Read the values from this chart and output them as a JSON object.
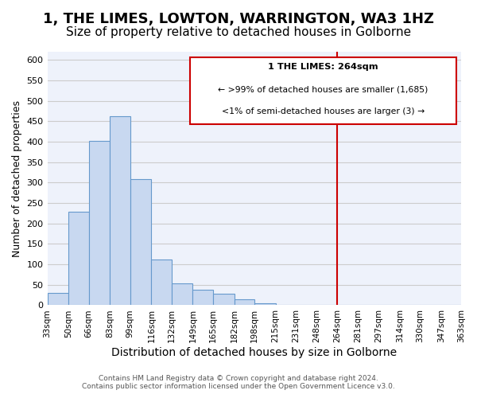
{
  "title": "1, THE LIMES, LOWTON, WARRINGTON, WA3 1HZ",
  "subtitle": "Size of property relative to detached houses in Golborne",
  "xlabel": "Distribution of detached houses by size in Golborne",
  "ylabel": "Number of detached properties",
  "footer_lines": [
    "Contains HM Land Registry data © Crown copyright and database right 2024.",
    "Contains public sector information licensed under the Open Government Licence v3.0."
  ],
  "bin_labels": [
    "33sqm",
    "50sqm",
    "66sqm",
    "83sqm",
    "99sqm",
    "116sqm",
    "132sqm",
    "149sqm",
    "165sqm",
    "182sqm",
    "198sqm",
    "215sqm",
    "231sqm",
    "248sqm",
    "264sqm",
    "281sqm",
    "297sqm",
    "314sqm",
    "330sqm",
    "347sqm",
    "363sqm"
  ],
  "bar_values": [
    30,
    228,
    401,
    463,
    308,
    112,
    54,
    37,
    29,
    14,
    5,
    0,
    0,
    0,
    0,
    0,
    0,
    0,
    0,
    0
  ],
  "bin_edges": [
    33,
    50,
    66,
    83,
    99,
    116,
    132,
    149,
    165,
    182,
    198,
    215,
    231,
    248,
    264,
    281,
    297,
    314,
    330,
    347,
    363
  ],
  "bar_color": "#c8d8f0",
  "bar_edgecolor": "#6699cc",
  "vline_x": 264,
  "vline_color": "#cc0000",
  "annotation_title": "1 THE LIMES: 264sqm",
  "annotation_line1": "← >99% of detached houses are smaller (1,685)",
  "annotation_line2": "<1% of semi-detached houses are larger (3) →",
  "annotation_box_facecolor": "#ffffff",
  "annotation_box_edgecolor": "#cc0000",
  "ylim": [
    0,
    620
  ],
  "yticks": [
    0,
    50,
    100,
    150,
    200,
    250,
    300,
    350,
    400,
    450,
    500,
    550,
    600
  ],
  "grid_color": "#cccccc",
  "axes_background": "#eef2fb",
  "title_fontsize": 13,
  "subtitle_fontsize": 11,
  "xlabel_fontsize": 10,
  "ylabel_fontsize": 9
}
